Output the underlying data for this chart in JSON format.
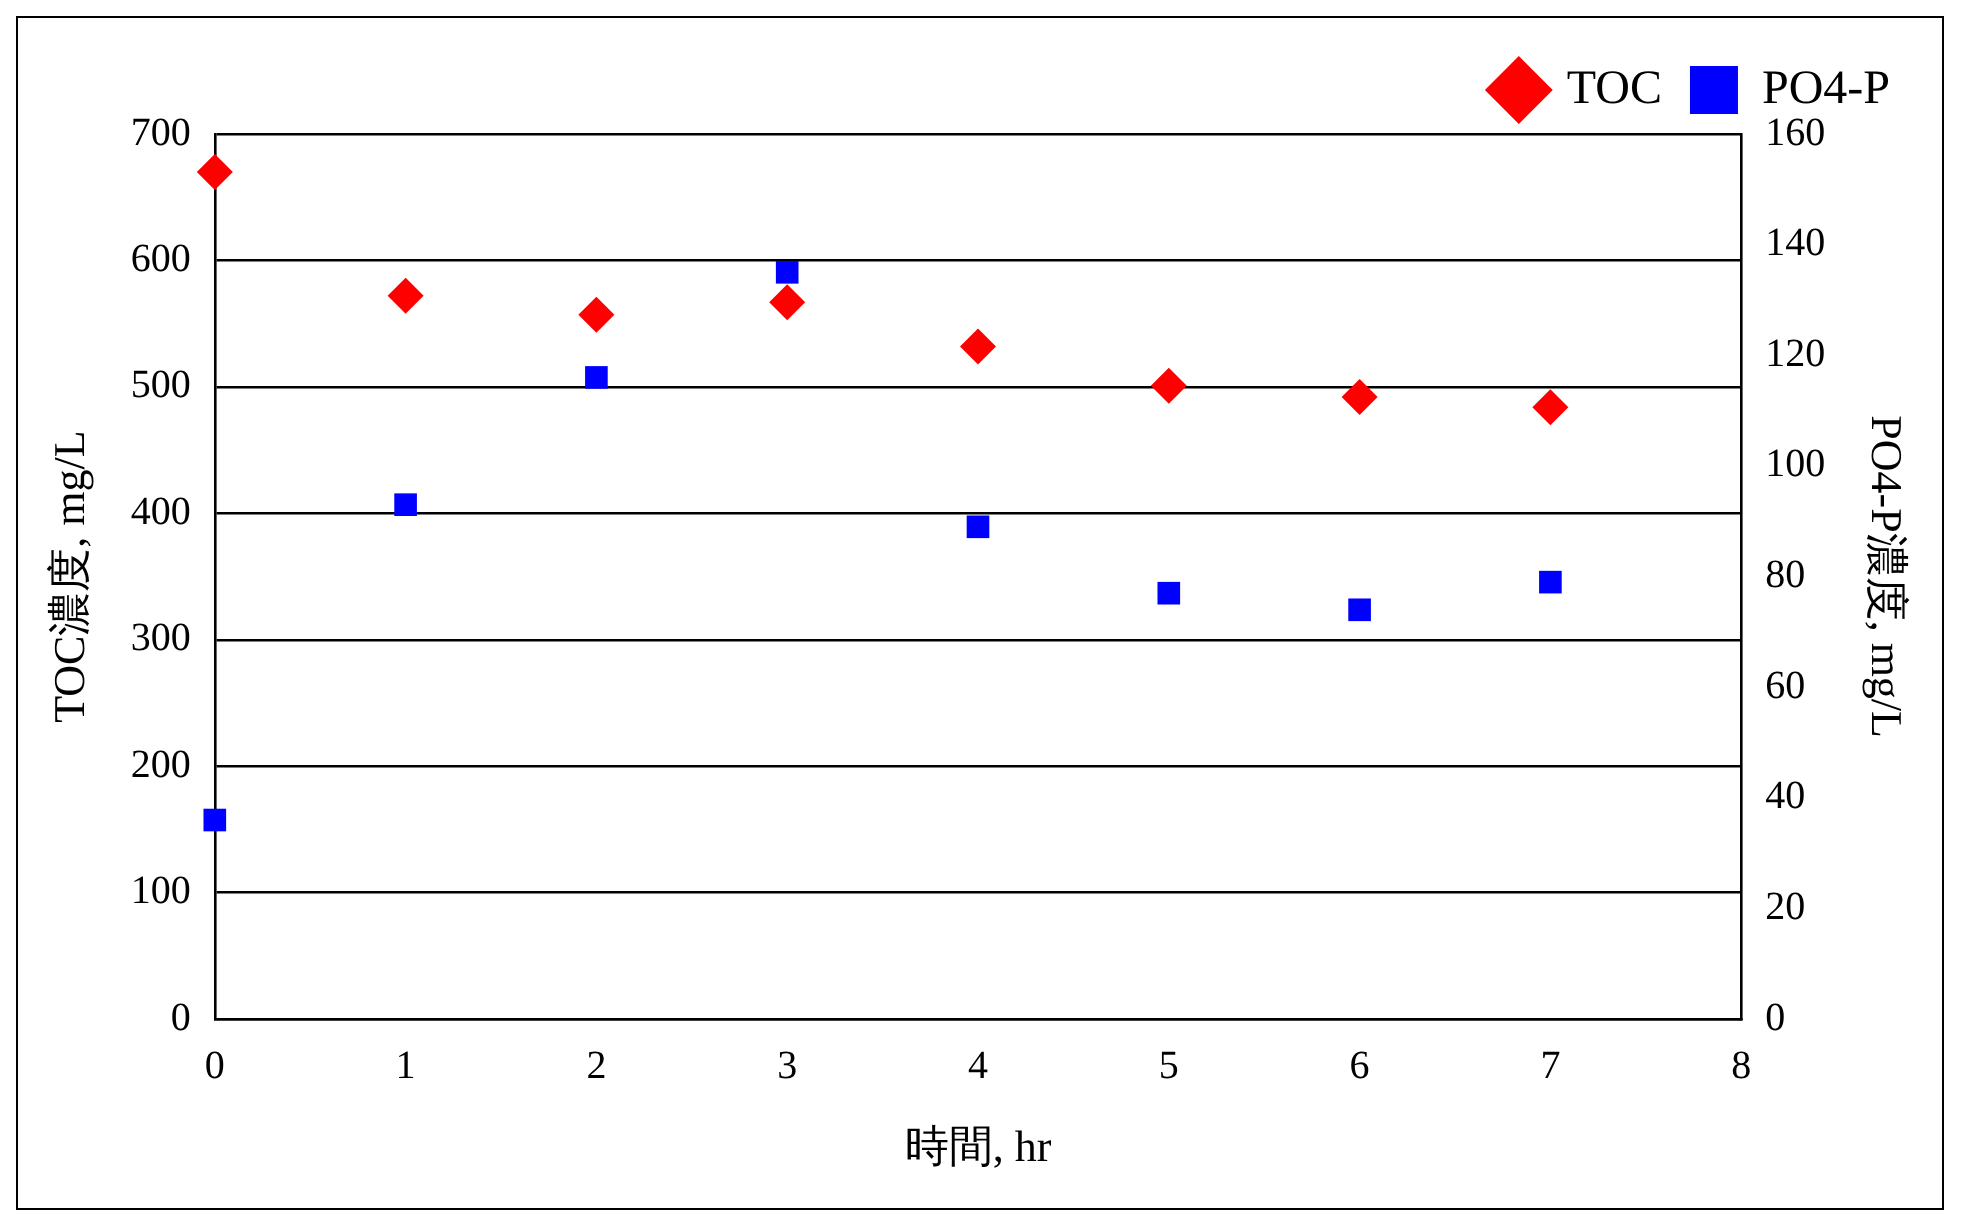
{
  "chart_data": {
    "type": "scatter",
    "xlabel": "時間, hr",
    "ylabel": "TOC濃度, mg/L",
    "y2label": "PO4-P濃度, mg/L",
    "x": [
      0,
      1,
      2,
      3,
      4,
      5,
      6,
      7
    ],
    "series": [
      {
        "name": "TOC",
        "color": "#ff0000",
        "marker": "diamond",
        "values": [
          670,
          572,
          557,
          567,
          532,
          501,
          492,
          484
        ]
      },
      {
        "name": "PO4-P",
        "color": "#0000ff",
        "marker": "square",
        "axis": "y2",
        "values": [
          36,
          93,
          116,
          135,
          89,
          77,
          74,
          79
        ]
      }
    ],
    "xlim": [
      0,
      8
    ],
    "xticks": [
      0,
      1,
      2,
      3,
      4,
      5,
      6,
      7,
      8
    ],
    "ylim": [
      0,
      700
    ],
    "yticks": [
      0,
      100,
      200,
      300,
      400,
      500,
      600,
      700
    ],
    "y2lim": [
      0,
      160
    ],
    "y2ticks": [
      0,
      20,
      40,
      60,
      80,
      100,
      120,
      140,
      160
    ],
    "grid": "y",
    "legend": "top right"
  }
}
